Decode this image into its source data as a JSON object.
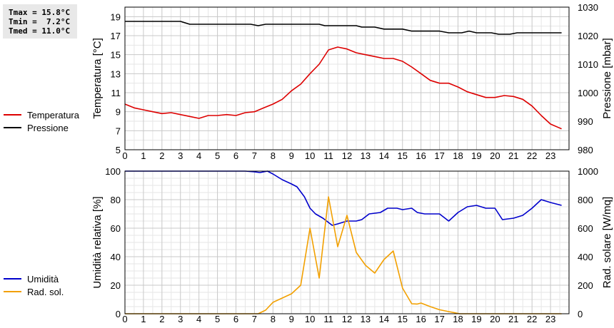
{
  "stats": {
    "tmax": "Tmax = 15.8°C",
    "tmin": "Tmin =  7.2°C",
    "tmed": "Tmed = 11.0°C"
  },
  "chart_data": [
    {
      "type": "line",
      "x_ticks": [
        "0",
        "1",
        "2",
        "3",
        "4",
        "5",
        "6",
        "7",
        "8",
        "9",
        "10",
        "11",
        "12",
        "13",
        "14",
        "15",
        "16",
        "17",
        "18",
        "19",
        "20",
        "21",
        "22",
        "23"
      ],
      "xlim": [
        0,
        24
      ],
      "ylabel": "Temperatura [°C]",
      "ylim": [
        5,
        20
      ],
      "y_ticks": [
        "5",
        "7",
        "9",
        "11",
        "13",
        "15",
        "17",
        "19"
      ],
      "y2label": "Pressione [mbar]",
      "y2lim": [
        980,
        1030
      ],
      "y2_ticks": [
        "980",
        "990",
        "1000",
        "1010",
        "1020",
        "1030"
      ],
      "grid": true,
      "legend": "left",
      "series": [
        {
          "name": "Temperatura",
          "axis": "left",
          "color": "#dd0000",
          "points": [
            [
              0,
              9.8
            ],
            [
              0.5,
              9.4
            ],
            [
              1,
              9.2
            ],
            [
              1.5,
              9.0
            ],
            [
              2,
              8.8
            ],
            [
              2.5,
              8.9
            ],
            [
              3,
              8.7
            ],
            [
              3.5,
              8.5
            ],
            [
              4,
              8.3
            ],
            [
              4.5,
              8.6
            ],
            [
              5,
              8.6
            ],
            [
              5.5,
              8.7
            ],
            [
              6,
              8.6
            ],
            [
              6.5,
              8.9
            ],
            [
              7,
              9.0
            ],
            [
              7.5,
              9.4
            ],
            [
              8,
              9.8
            ],
            [
              8.5,
              10.3
            ],
            [
              9,
              11.2
            ],
            [
              9.5,
              11.9
            ],
            [
              10,
              13.0
            ],
            [
              10.5,
              14.0
            ],
            [
              11,
              15.5
            ],
            [
              11.5,
              15.8
            ],
            [
              12,
              15.6
            ],
            [
              12.5,
              15.2
            ],
            [
              13,
              15.0
            ],
            [
              13.5,
              14.8
            ],
            [
              14,
              14.6
            ],
            [
              14.5,
              14.6
            ],
            [
              15,
              14.3
            ],
            [
              15.5,
              13.7
            ],
            [
              16,
              13.0
            ],
            [
              16.5,
              12.3
            ],
            [
              17,
              12.0
            ],
            [
              17.5,
              12.0
            ],
            [
              18,
              11.6
            ],
            [
              18.5,
              11.1
            ],
            [
              19,
              10.8
            ],
            [
              19.5,
              10.5
            ],
            [
              20,
              10.5
            ],
            [
              20.5,
              10.7
            ],
            [
              21,
              10.6
            ],
            [
              21.5,
              10.3
            ],
            [
              22,
              9.6
            ],
            [
              22.5,
              8.6
            ],
            [
              23,
              7.7
            ],
            [
              23.6,
              7.2
            ]
          ]
        },
        {
          "name": "Pressione",
          "axis": "right",
          "color": "#000000",
          "points": [
            [
              0,
              1025
            ],
            [
              3,
              1025
            ],
            [
              3.5,
              1024
            ],
            [
              6.8,
              1024
            ],
            [
              7.2,
              1023.5
            ],
            [
              7.6,
              1024
            ],
            [
              10.5,
              1024
            ],
            [
              10.8,
              1023.5
            ],
            [
              12.5,
              1023.5
            ],
            [
              12.8,
              1023
            ],
            [
              13.5,
              1023
            ],
            [
              14,
              1022.3
            ],
            [
              15,
              1022.3
            ],
            [
              15.5,
              1021.6
            ],
            [
              17,
              1021.6
            ],
            [
              17.5,
              1021
            ],
            [
              18.2,
              1021
            ],
            [
              18.6,
              1021.6
            ],
            [
              19,
              1021
            ],
            [
              19.8,
              1021
            ],
            [
              20.2,
              1020.5
            ],
            [
              20.8,
              1020.5
            ],
            [
              21.2,
              1021
            ],
            [
              23.6,
              1021
            ]
          ]
        }
      ]
    },
    {
      "type": "line",
      "x_ticks": [
        "0",
        "1",
        "2",
        "3",
        "4",
        "5",
        "6",
        "7",
        "8",
        "9",
        "10",
        "11",
        "12",
        "13",
        "14",
        "15",
        "16",
        "17",
        "18",
        "19",
        "20",
        "21",
        "22",
        "23"
      ],
      "xlim": [
        0,
        24
      ],
      "ylabel": "Umidità relativa [%]",
      "ylim": [
        0,
        100
      ],
      "y_ticks": [
        "0",
        "20",
        "40",
        "60",
        "80",
        "100"
      ],
      "y2label": "Rad. solare [W/mq]",
      "y2lim": [
        0,
        1000
      ],
      "y2_ticks": [
        "0",
        "200",
        "400",
        "600",
        "800",
        "1000"
      ],
      "grid": true,
      "legend": "left",
      "series": [
        {
          "name": "Umidità",
          "axis": "left",
          "color": "#0000cc",
          "points": [
            [
              0,
              100
            ],
            [
              6.5,
              100
            ],
            [
              7,
              99.5
            ],
            [
              7.3,
              99
            ],
            [
              7.7,
              100
            ],
            [
              8,
              98
            ],
            [
              8.5,
              94
            ],
            [
              9,
              91
            ],
            [
              9.3,
              89
            ],
            [
              9.7,
              82
            ],
            [
              10,
              74
            ],
            [
              10.3,
              70
            ],
            [
              10.7,
              67
            ],
            [
              11,
              64
            ],
            [
              11.2,
              62
            ],
            [
              11.5,
              63
            ],
            [
              12,
              65
            ],
            [
              12.5,
              65
            ],
            [
              12.8,
              66
            ],
            [
              13.2,
              70
            ],
            [
              13.8,
              71
            ],
            [
              14.2,
              74
            ],
            [
              14.7,
              74
            ],
            [
              15,
              73
            ],
            [
              15.5,
              74
            ],
            [
              15.8,
              71
            ],
            [
              16.2,
              70
            ],
            [
              17,
              70
            ],
            [
              17.5,
              65
            ],
            [
              18,
              71
            ],
            [
              18.5,
              75
            ],
            [
              19,
              76
            ],
            [
              19.5,
              74
            ],
            [
              20,
              74
            ],
            [
              20.4,
              66
            ],
            [
              21,
              67
            ],
            [
              21.5,
              69
            ],
            [
              22,
              74
            ],
            [
              22.5,
              80
            ],
            [
              23,
              78
            ],
            [
              23.6,
              76
            ]
          ]
        },
        {
          "name": "Rad. sol.",
          "axis": "right",
          "color": "#f2a000",
          "points": [
            [
              0,
              0
            ],
            [
              7.2,
              0
            ],
            [
              7.6,
              25
            ],
            [
              8,
              80
            ],
            [
              8.5,
              110
            ],
            [
              9,
              140
            ],
            [
              9.5,
              200
            ],
            [
              10,
              600
            ],
            [
              10.5,
              250
            ],
            [
              11,
              820
            ],
            [
              11.5,
              470
            ],
            [
              12,
              690
            ],
            [
              12.5,
              430
            ],
            [
              13,
              340
            ],
            [
              13.5,
              285
            ],
            [
              14,
              380
            ],
            [
              14.5,
              440
            ],
            [
              15,
              180
            ],
            [
              15.5,
              70
            ],
            [
              15.8,
              68
            ],
            [
              16,
              75
            ],
            [
              16.5,
              50
            ],
            [
              17,
              28
            ],
            [
              17.5,
              15
            ],
            [
              17.9,
              5
            ],
            [
              18.1,
              0
            ],
            [
              23.6,
              0
            ]
          ]
        }
      ]
    }
  ]
}
